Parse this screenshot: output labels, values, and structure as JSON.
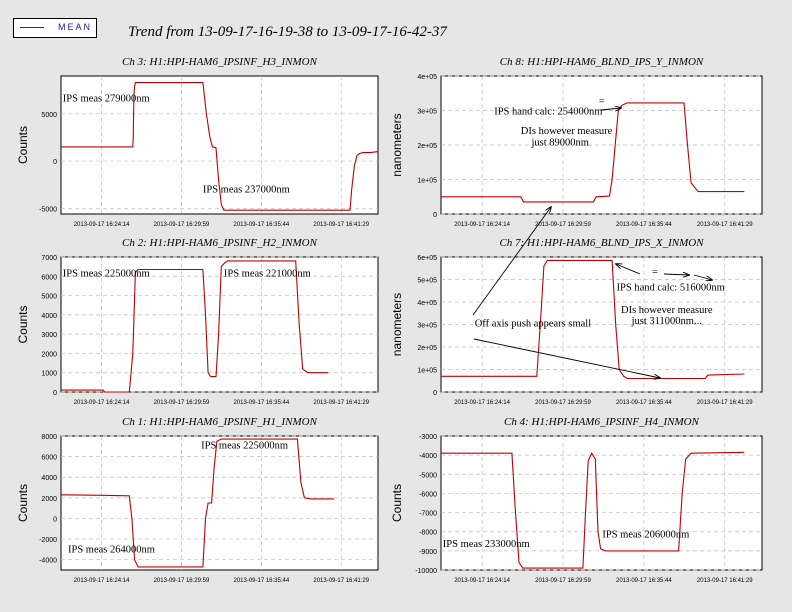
{
  "legend": {
    "label": "MEAN",
    "color": "#c00000"
  },
  "page_title": "Trend from 13-09-17-16-19-38 to 13-09-17-16-42-37",
  "chart_data": [
    {
      "type": "line",
      "title": "Ch 3: H1:HPI-HAM6_IPSINF_H3_INMON",
      "ylabel": "Counts",
      "ylim": [
        -5600,
        9000
      ],
      "yticks": [
        -5000,
        0,
        5000
      ],
      "ytick_labels": [
        "-5000",
        "0",
        "5000"
      ],
      "xticks": [
        "2013-09-17 16:24:14",
        "2013-09-17 16:29:59",
        "2013-09-17 16:35:44",
        "2013-09-17 16:41:29"
      ],
      "series": [
        {
          "values": [
            [
              0,
              1500
            ],
            [
              82,
              1500
            ],
            [
              82.4,
              2200
            ],
            [
              83.2,
              7000
            ],
            [
              84,
              7900
            ],
            [
              85,
              8300
            ],
            [
              162,
              8300
            ],
            [
              166,
              5000
            ],
            [
              170,
              2500
            ],
            [
              173,
              1500
            ],
            [
              177,
              1400
            ],
            [
              180,
              -2000
            ],
            [
              183,
              -4600
            ],
            [
              186,
              -5200
            ],
            [
              330,
              -5200
            ],
            [
              332,
              -3000
            ],
            [
              335,
              -500
            ],
            [
              338,
              600
            ],
            [
              341,
              800
            ],
            [
              345,
              900
            ],
            [
              353,
              900
            ],
            [
              362,
              1000
            ]
          ]
        }
      ],
      "annotations": [
        {
          "text": "IPS meas 279000nm",
          "x": 2,
          "y": 6300
        },
        {
          "text": "IPS meas 237000nm",
          "x": 162,
          "y": -3300
        }
      ]
    },
    {
      "type": "line",
      "title": "Ch 8: H1:HPI-HAM6_BLND_IPS_Y_INMON",
      "ylabel": "nanometers",
      "ylim": [
        0,
        400000
      ],
      "yticks": [
        0,
        100000,
        200000,
        300000,
        400000
      ],
      "ytick_labels": [
        "0",
        "1e+05",
        "2e+05",
        "3e+05",
        "4e+05"
      ],
      "xticks": [
        "2013-09-17 16:24:14",
        "2013-09-17 16:29:59",
        "2013-09-17 16:35:44",
        "2013-09-17 16:41:29"
      ],
      "series": [
        {
          "values": [
            [
              0,
              50000
            ],
            [
              90,
              50000
            ],
            [
              93,
              35000
            ],
            [
              172,
              35000
            ],
            [
              175,
              50000
            ],
            [
              190,
              52000
            ],
            [
              193,
              100000
            ],
            [
              200,
              300000
            ],
            [
              204,
              315000
            ],
            [
              210,
              322000
            ],
            [
              274,
              322000
            ],
            [
              278,
              200000
            ],
            [
              282,
              90000
            ],
            [
              290,
              65000
            ],
            [
              342,
              65000
            ]
          ]
        }
      ],
      "annotations": [
        {
          "text": "IPS hand calc: 254000nm",
          "x": 60,
          "y": 288000
        },
        {
          "text": "DIs however measure",
          "x": 90,
          "y": 232000
        },
        {
          "text": "just 89000nm",
          "x": 102,
          "y": 199000
        }
      ]
    },
    {
      "type": "line",
      "title": "Ch 2: H1:HPI-HAM6_IPSINF_H2_INMON",
      "ylabel": "Counts",
      "ylim": [
        0,
        7000
      ],
      "yticks": [
        0,
        1000,
        2000,
        3000,
        4000,
        5000,
        6000,
        7000
      ],
      "ytick_labels": [
        "0",
        "1000",
        "2000",
        "3000",
        "4000",
        "5000",
        "6000",
        "7000"
      ],
      "xticks": [
        "2013-09-17 16:24:14",
        "2013-09-17 16:29:59",
        "2013-09-17 16:35:44",
        "2013-09-17 16:41:29"
      ],
      "series": [
        {
          "values": [
            [
              0,
              100
            ],
            [
              48,
              100
            ],
            [
              50,
              0
            ],
            [
              78,
              0
            ],
            [
              82,
              2000
            ],
            [
              85,
              6200
            ],
            [
              88,
              6350
            ],
            [
              162,
              6350
            ],
            [
              165,
              4000
            ],
            [
              168,
              1000
            ],
            [
              171,
              800
            ],
            [
              177,
              800
            ],
            [
              180,
              3000
            ],
            [
              183,
              6500
            ],
            [
              187,
              6700
            ],
            [
              190,
              6800
            ],
            [
              268,
              6800
            ],
            [
              272,
              3500
            ],
            [
              276,
              1200
            ],
            [
              282,
              1000
            ],
            [
              305,
              1000
            ]
          ]
        }
      ],
      "annotations": [
        {
          "text": "IPS meas 225000nm",
          "x": 2,
          "y": 6000
        },
        {
          "text": "IPS meas 221000nm",
          "x": 186,
          "y": 6000
        }
      ]
    },
    {
      "type": "line",
      "title": "Ch 7: H1:HPI-HAM6_BLND_IPS_X_INMON",
      "ylabel": "nanometers",
      "ylim": [
        0,
        600000
      ],
      "yticks": [
        0,
        100000,
        200000,
        300000,
        400000,
        500000,
        600000
      ],
      "ytick_labels": [
        "0",
        "1e+05",
        "2e+05",
        "3e+05",
        "4e+05",
        "5e+05",
        "6e+05"
      ],
      "xticks": [
        "2013-09-17 16:24:14",
        "2013-09-17 16:29:59",
        "2013-09-17 16:35:44",
        "2013-09-17 16:41:29"
      ],
      "series": [
        {
          "values": [
            [
              0,
              70000
            ],
            [
              108,
              70000
            ],
            [
              112,
              300000
            ],
            [
              116,
              560000
            ],
            [
              120,
              585000
            ],
            [
              193,
              585000
            ],
            [
              197,
              300000
            ],
            [
              201,
              100000
            ],
            [
              206,
              70000
            ],
            [
              210,
              60000
            ],
            [
              298,
              60000
            ],
            [
              301,
              75000
            ],
            [
              342,
              80000
            ]
          ]
        }
      ],
      "annotations": [
        {
          "text": "IPS hand calc: 516000nm",
          "x": 198,
          "y": 452000
        },
        {
          "text": "DIs however measure",
          "x": 203,
          "y": 352000
        },
        {
          "text": "just 311000nm...",
          "x": 215,
          "y": 303000
        },
        {
          "text": "Off axis push appears small",
          "x": 38,
          "y": 292000
        }
      ]
    },
    {
      "type": "line",
      "title": "Ch 1: H1:HPI-HAM6_IPSINF_H1_INMON",
      "ylabel": "Counts",
      "ylim": [
        -5000,
        8000
      ],
      "yticks": [
        -4000,
        -2000,
        0,
        2000,
        4000,
        6000,
        8000
      ],
      "ytick_labels": [
        "-4000",
        "-2000",
        "0",
        "2000",
        "4000",
        "6000",
        "8000"
      ],
      "xticks": [
        "2013-09-17 16:24:14",
        "2013-09-17 16:29:59",
        "2013-09-17 16:35:44",
        "2013-09-17 16:41:29"
      ],
      "series": [
        {
          "values": [
            [
              0,
              2300
            ],
            [
              48,
              2250
            ],
            [
              78,
              2200
            ],
            [
              81,
              0
            ],
            [
              84,
              -4000
            ],
            [
              88,
              -4700
            ],
            [
              162,
              -4700
            ],
            [
              165,
              0
            ],
            [
              168,
              1500
            ],
            [
              172,
              1500
            ],
            [
              175,
              5000
            ],
            [
              178,
              7500
            ],
            [
              183,
              7700
            ],
            [
              270,
              7700
            ],
            [
              274,
              3500
            ],
            [
              278,
              2000
            ],
            [
              285,
              1900
            ],
            [
              312,
              1900
            ]
          ]
        }
      ],
      "annotations": [
        {
          "text": "IPS meas 225000nm",
          "x": 160,
          "y": 6800
        },
        {
          "text": "IPS meas 264000nm",
          "x": 8,
          "y": -3300
        }
      ]
    },
    {
      "type": "line",
      "title": "Ch 4: H1:HPI-HAM6_IPSINF_H4_INMON",
      "ylabel": "Counts",
      "ylim": [
        -10000,
        -3000
      ],
      "yticks": [
        -10000,
        -9000,
        -8000,
        -7000,
        -6000,
        -5000,
        -4000,
        -3000
      ],
      "ytick_labels": [
        "-10000",
        "-9000",
        "-8000",
        "-7000",
        "-6000",
        "-5000",
        "-4000",
        "-3000"
      ],
      "xticks": [
        "2013-09-17 16:24:14",
        "2013-09-17 16:29:59",
        "2013-09-17 16:35:44",
        "2013-09-17 16:41:29"
      ],
      "series": [
        {
          "values": [
            [
              0,
              -3900
            ],
            [
              80,
              -3900
            ],
            [
              84,
              -7000
            ],
            [
              88,
              -9600
            ],
            [
              92,
              -9900
            ],
            [
              160,
              -9900
            ],
            [
              163,
              -7000
            ],
            [
              166,
              -4300
            ],
            [
              170,
              -3900
            ],
            [
              174,
              -4200
            ],
            [
              177,
              -8000
            ],
            [
              180,
              -8900
            ],
            [
              186,
              -9000
            ],
            [
              268,
              -9000
            ],
            [
              272,
              -6000
            ],
            [
              276,
              -4200
            ],
            [
              282,
              -3900
            ],
            [
              342,
              -3850
            ]
          ]
        }
      ],
      "annotations": [
        {
          "text": "IPS meas 233000nm",
          "x": 2,
          "y": -8800
        },
        {
          "text": "IPS meas 206000nm",
          "x": 182,
          "y": -8300
        }
      ]
    }
  ],
  "extra_notes": [
    {
      "text": "=",
      "chart": 1,
      "x": 178,
      "y": 318000
    },
    {
      "text": "=",
      "chart": 3,
      "x": 238,
      "y": 520000
    }
  ]
}
